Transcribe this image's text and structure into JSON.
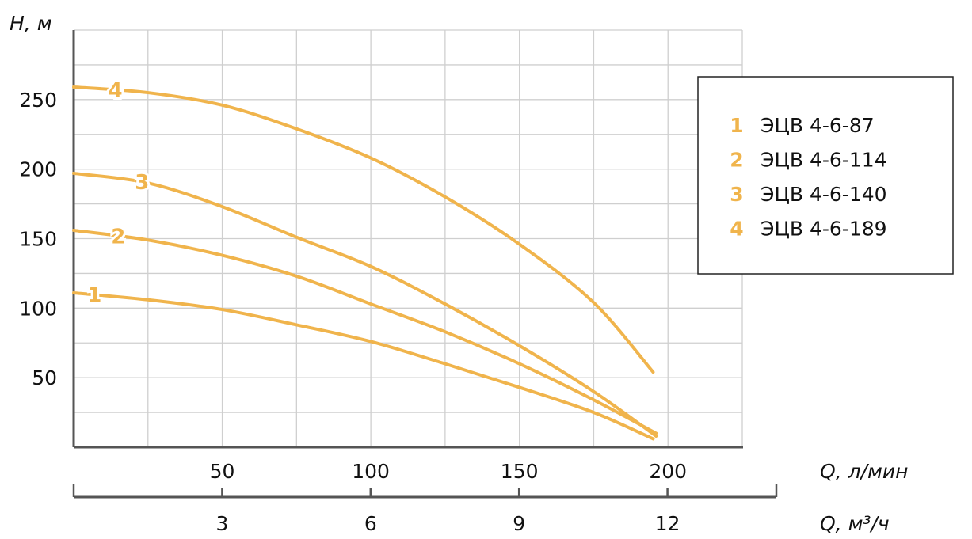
{
  "chart_data": {
    "type": "line",
    "title": "",
    "ylabel": "H, м",
    "xlabel": "Q, л/мин",
    "xlabel_secondary": "Q, м³/ч",
    "xlim": [
      0,
      225
    ],
    "ylim": [
      0,
      300
    ],
    "grid": true,
    "grid_step_x": 25,
    "grid_step_y": 25,
    "y_ticks": [
      50,
      100,
      150,
      200,
      250
    ],
    "x_ticks": [
      50,
      100,
      150,
      200
    ],
    "x_secondary_ticks": [
      3,
      6,
      9,
      12
    ],
    "x_secondary_lim": [
      0,
      14.2
    ],
    "legend_position": "right",
    "color": "#f0b44c",
    "series": [
      {
        "label": "1",
        "name": "ЭЦВ 4-6-87",
        "x": [
          0,
          25,
          50,
          75,
          100,
          125,
          150,
          175,
          195
        ],
        "y": [
          111,
          106,
          99,
          88,
          76,
          60,
          43,
          25,
          6
        ]
      },
      {
        "label": "2",
        "name": "ЭЦВ 4-6-114",
        "x": [
          0,
          25,
          50,
          75,
          100,
          125,
          150,
          175,
          196
        ],
        "y": [
          156,
          149,
          138,
          123,
          103,
          83,
          60,
          34,
          10
        ]
      },
      {
        "label": "3",
        "name": "ЭЦВ 4-6-140",
        "x": [
          0,
          25,
          50,
          75,
          100,
          125,
          150,
          175,
          196
        ],
        "y": [
          197,
          190,
          173,
          151,
          130,
          103,
          73,
          40,
          8
        ]
      },
      {
        "label": "4",
        "name": "ЭЦВ 4-6-189",
        "x": [
          0,
          25,
          50,
          75,
          100,
          125,
          150,
          175,
          195
        ],
        "y": [
          259,
          255,
          246,
          229,
          208,
          180,
          146,
          104,
          54
        ]
      }
    ],
    "series_label_positions_x": [
      7,
      15,
      23,
      14
    ]
  }
}
